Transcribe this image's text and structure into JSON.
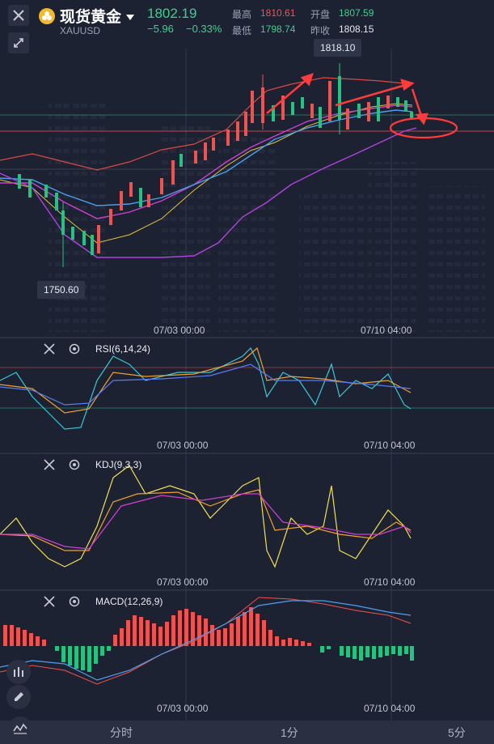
{
  "header": {
    "title": "现货黄金",
    "symbol": "XAUUSD",
    "price": "1802.19",
    "change": "−5.96",
    "change_pct": "−0.33%",
    "high_label": "最高",
    "high_value": "1810.61",
    "low_label": "最低",
    "low_value": "1798.74",
    "open_label": "开盘",
    "open_value": "1807.59",
    "prev_label": "昨收",
    "prev_value": "1808.15"
  },
  "chart": {
    "high_tag": "1818.10",
    "low_tag": "1750.60",
    "time_left": "07/03 00:00",
    "time_right": "07/10 04:00"
  },
  "indicators": {
    "rsi_title": "RSI(6,14,24)",
    "kdj_title": "KDJ(9,3,3)",
    "macd_title": "MACD(12,26,9)"
  },
  "tabs": [
    "分时",
    "1分",
    "5分"
  ],
  "icons": {
    "close": "close-icon",
    "expand": "expand-icon",
    "gold": "gold-coin-icon",
    "dropdown": "chevron-down-icon",
    "settings": "gear-icon",
    "pen": "pen-icon",
    "indicator": "indicator-icon",
    "wave": "wave-icon"
  },
  "colors": {
    "up": "#ef5350",
    "down": "#26c281",
    "background": "#1d2232"
  }
}
